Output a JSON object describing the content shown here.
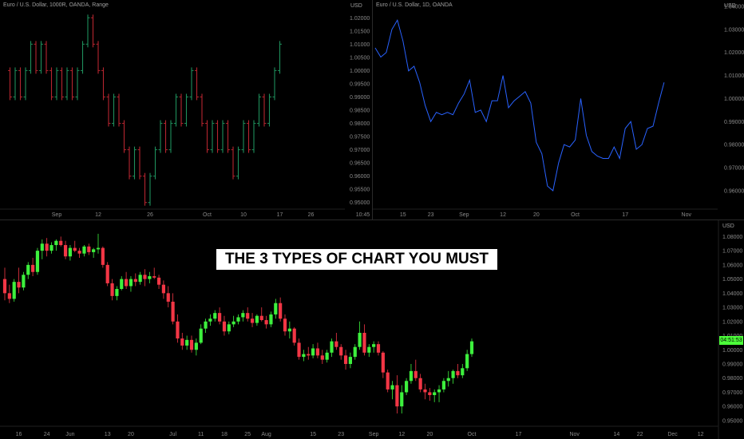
{
  "banner": "THE 3 TYPES OF CHART YOU MUST KNOW",
  "colors": {
    "up": "#3df03d",
    "down": "#f23645",
    "line": "#2962ff",
    "range_up": "#1e8f5c",
    "range_down": "#b5252f",
    "last_price": "#4cff3a"
  },
  "chart_data": [
    {
      "type": "range_bars",
      "legend": "Euro / U.S. Dollar, 1000R, OANDA, Range",
      "currency": "USD",
      "ylim": [
        0.9475,
        1.0225
      ],
      "y_ticks": [
        "1.02000",
        "1.01500",
        "1.01000",
        "1.00500",
        "1.00000",
        "0.99500",
        "0.99000",
        "0.98500",
        "0.98000",
        "0.97500",
        "0.97000",
        "0.96500",
        "0.96000",
        "0.95500",
        "0.95000"
      ],
      "x_ticks": [
        {
          "label": "Sep",
          "i": 10
        },
        {
          "label": "12",
          "i": 18
        },
        {
          "label": "26",
          "i": 28
        },
        {
          "label": "Oct",
          "i": 39
        },
        {
          "label": "10",
          "i": 46
        },
        {
          "label": "17",
          "i": 53
        },
        {
          "label": "26",
          "i": 59
        },
        {
          "label": "10:45",
          "i": 69
        }
      ],
      "values": [
        1.0,
        0.99,
        1.0,
        0.99,
        1.0,
        1.01,
        1.0,
        1.01,
        1.0,
        0.99,
        1.0,
        0.99,
        1.0,
        0.99,
        1.0,
        1.01,
        1.02,
        1.01,
        1.0,
        0.99,
        0.98,
        0.99,
        0.98,
        0.97,
        0.96,
        0.97,
        0.96,
        0.95,
        0.96,
        0.97,
        0.98,
        0.97,
        0.98,
        0.99,
        0.98,
        0.99,
        1.0,
        0.99,
        0.98,
        0.97,
        0.98,
        0.97,
        0.98,
        0.97,
        0.96,
        0.97,
        0.98,
        0.97,
        0.98,
        0.99,
        0.98,
        0.99,
        1.0,
        1.01
      ]
    },
    {
      "type": "line",
      "legend": "Euro / U.S. Dollar, 1D, OANDA",
      "currency": "USD",
      "ylim": [
        0.952,
        1.04
      ],
      "y_ticks": [
        "1.04000",
        "1.03000",
        "1.02000",
        "1.01000",
        "1.00000",
        "0.99000",
        "0.98000",
        "0.97000",
        "0.96000"
      ],
      "x_ticks": [
        {
          "label": "15",
          "i": 5
        },
        {
          "label": "23",
          "i": 10
        },
        {
          "label": "Sep",
          "i": 16
        },
        {
          "label": "12",
          "i": 23
        },
        {
          "label": "20",
          "i": 29
        },
        {
          "label": "Oct",
          "i": 36
        },
        {
          "label": "17",
          "i": 45
        },
        {
          "label": "Nov",
          "i": 56
        }
      ],
      "values": [
        1.022,
        1.018,
        1.02,
        1.03,
        1.034,
        1.025,
        1.012,
        1.014,
        1.007,
        0.997,
        0.99,
        0.994,
        0.993,
        0.994,
        0.993,
        0.998,
        1.002,
        1.008,
        0.994,
        0.995,
        0.99,
        0.999,
        0.999,
        1.01,
        0.996,
        0.999,
        1.001,
        1.003,
        0.998,
        0.981,
        0.976,
        0.962,
        0.96,
        0.972,
        0.98,
        0.979,
        0.982,
        1.0,
        0.984,
        0.977,
        0.975,
        0.974,
        0.974,
        0.979,
        0.974,
        0.987,
        0.99,
        0.978,
        0.98,
        0.987,
        0.988,
        0.998,
        1.007
      ]
    },
    {
      "type": "candlestick",
      "currency": "USD",
      "ylim": [
        0.946,
        1.087
      ],
      "y_ticks": [
        "1.08000",
        "1.07000",
        "1.06000",
        "1.05000",
        "1.04000",
        "1.03000",
        "1.02000",
        "1.01000",
        "1.00000",
        "0.99000",
        "0.98000",
        "0.97000",
        "0.96000",
        "0.95000"
      ],
      "last_price": "04:51:53",
      "x_ticks": [
        {
          "label": "16",
          "i": 3
        },
        {
          "label": "24",
          "i": 9
        },
        {
          "label": "Jun",
          "i": 14
        },
        {
          "label": "13",
          "i": 22
        },
        {
          "label": "20",
          "i": 27
        },
        {
          "label": "Jul",
          "i": 36
        },
        {
          "label": "11",
          "i": 42
        },
        {
          "label": "18",
          "i": 47
        },
        {
          "label": "25",
          "i": 52
        },
        {
          "label": "Aug",
          "i": 56
        },
        {
          "label": "15",
          "i": 66
        },
        {
          "label": "23",
          "i": 72
        },
        {
          "label": "Sep",
          "i": 79
        },
        {
          "label": "12",
          "i": 85
        },
        {
          "label": "20",
          "i": 91
        },
        {
          "label": "Oct",
          "i": 100
        },
        {
          "label": "17",
          "i": 110
        },
        {
          "label": "Nov",
          "i": 122
        },
        {
          "label": "14",
          "i": 131
        },
        {
          "label": "22",
          "i": 136
        },
        {
          "label": "Dec",
          "i": 143
        },
        {
          "label": "12",
          "i": 149
        }
      ],
      "ohlc": [
        [
          1.05,
          1.058,
          1.035,
          1.04
        ],
        [
          1.04,
          1.046,
          1.033,
          1.036
        ],
        [
          1.036,
          1.05,
          1.034,
          1.048
        ],
        [
          1.048,
          1.058,
          1.04,
          1.044
        ],
        [
          1.044,
          1.055,
          1.042,
          1.053
        ],
        [
          1.053,
          1.062,
          1.05,
          1.06
        ],
        [
          1.06,
          1.065,
          1.052,
          1.055
        ],
        [
          1.055,
          1.072,
          1.053,
          1.07
        ],
        [
          1.07,
          1.078,
          1.064,
          1.075
        ],
        [
          1.075,
          1.079,
          1.066,
          1.07
        ],
        [
          1.07,
          1.076,
          1.068,
          1.074
        ],
        [
          1.074,
          1.078,
          1.07,
          1.077
        ],
        [
          1.077,
          1.08,
          1.073,
          1.074
        ],
        [
          1.074,
          1.077,
          1.064,
          1.066
        ],
        [
          1.066,
          1.074,
          1.063,
          1.072
        ],
        [
          1.072,
          1.077,
          1.069,
          1.07
        ],
        [
          1.07,
          1.072,
          1.065,
          1.068
        ],
        [
          1.068,
          1.074,
          1.066,
          1.073
        ],
        [
          1.073,
          1.075,
          1.067,
          1.069
        ],
        [
          1.069,
          1.072,
          1.065,
          1.071
        ],
        [
          1.071,
          1.082,
          1.068,
          1.072
        ],
        [
          1.072,
          1.073,
          1.058,
          1.06
        ],
        [
          1.06,
          1.062,
          1.045,
          1.047
        ],
        [
          1.047,
          1.05,
          1.035,
          1.038
        ],
        [
          1.038,
          1.045,
          1.035,
          1.043
        ],
        [
          1.043,
          1.052,
          1.042,
          1.05
        ],
        [
          1.05,
          1.055,
          1.043,
          1.045
        ],
        [
          1.045,
          1.052,
          1.041,
          1.05
        ],
        [
          1.05,
          1.054,
          1.045,
          1.048
        ],
        [
          1.048,
          1.055,
          1.046,
          1.053
        ],
        [
          1.053,
          1.057,
          1.045,
          1.05
        ],
        [
          1.05,
          1.055,
          1.047,
          1.052
        ],
        [
          1.052,
          1.058,
          1.05,
          1.051
        ],
        [
          1.051,
          1.053,
          1.043,
          1.046
        ],
        [
          1.046,
          1.049,
          1.036,
          1.04
        ],
        [
          1.04,
          1.045,
          1.03,
          1.034
        ],
        [
          1.034,
          1.04,
          1.018,
          1.02
        ],
        [
          1.02,
          1.025,
          1.005,
          1.008
        ],
        [
          1.008,
          1.012,
          1.0,
          1.003
        ],
        [
          1.003,
          1.01,
          1.0,
          1.007
        ],
        [
          1.007,
          1.01,
          0.998,
          1.0
        ],
        [
          1.0,
          1.008,
          0.996,
          1.005
        ],
        [
          1.005,
          1.018,
          1.004,
          1.015
        ],
        [
          1.015,
          1.022,
          1.012,
          1.02
        ],
        [
          1.02,
          1.025,
          1.017,
          1.022
        ],
        [
          1.022,
          1.028,
          1.02,
          1.026
        ],
        [
          1.026,
          1.03,
          1.018,
          1.02
        ],
        [
          1.02,
          1.024,
          1.01,
          1.013
        ],
        [
          1.013,
          1.02,
          1.011,
          1.018
        ],
        [
          1.018,
          1.024,
          1.016,
          1.02
        ],
        [
          1.02,
          1.025,
          1.018,
          1.023
        ],
        [
          1.023,
          1.028,
          1.02,
          1.026
        ],
        [
          1.026,
          1.03,
          1.02,
          1.022
        ],
        [
          1.022,
          1.026,
          1.016,
          1.019
        ],
        [
          1.019,
          1.025,
          1.017,
          1.024
        ],
        [
          1.024,
          1.03,
          1.02,
          1.021
        ],
        [
          1.021,
          1.024,
          1.015,
          1.018
        ],
        [
          1.018,
          1.027,
          1.016,
          1.025
        ],
        [
          1.025,
          1.036,
          1.022,
          1.033
        ],
        [
          1.033,
          1.037,
          1.02,
          1.022
        ],
        [
          1.022,
          1.025,
          1.01,
          1.013
        ],
        [
          1.013,
          1.02,
          1.008,
          1.015
        ],
        [
          1.015,
          1.016,
          1.003,
          1.005
        ],
        [
          1.005,
          1.008,
          0.993,
          0.995
        ],
        [
          0.995,
          1.0,
          0.992,
          0.997
        ],
        [
          0.997,
          1.002,
          0.993,
          0.996
        ],
        [
          0.996,
          1.004,
          0.994,
          1.001
        ],
        [
          1.001,
          1.005,
          0.994,
          0.996
        ],
        [
          0.996,
          1.0,
          0.99,
          0.993
        ],
        [
          0.993,
          1.0,
          0.991,
          0.998
        ],
        [
          0.998,
          1.008,
          0.995,
          1.006
        ],
        [
          1.006,
          1.012,
          1.0,
          1.002
        ],
        [
          1.002,
          1.004,
          0.993,
          0.996
        ],
        [
          0.996,
          1.0,
          0.986,
          0.99
        ],
        [
          0.99,
          0.998,
          0.987,
          0.995
        ],
        [
          0.995,
          1.004,
          0.993,
          1.002
        ],
        [
          1.002,
          1.02,
          1.0,
          1.012
        ],
        [
          1.012,
          1.018,
          0.996,
          0.998
        ],
        [
          0.998,
          1.004,
          0.995,
          1.002
        ],
        [
          1.002,
          1.006,
          0.998,
          1.004
        ],
        [
          1.004,
          1.006,
          0.996,
          0.998
        ],
        [
          0.998,
          0.999,
          0.98,
          0.984
        ],
        [
          0.984,
          0.986,
          0.97,
          0.972
        ],
        [
          0.972,
          0.978,
          0.965,
          0.975
        ],
        [
          0.975,
          0.982,
          0.955,
          0.96
        ],
        [
          0.96,
          0.975,
          0.955,
          0.97
        ],
        [
          0.97,
          0.98,
          0.968,
          0.978
        ],
        [
          0.978,
          0.99,
          0.976,
          0.985
        ],
        [
          0.985,
          0.993,
          0.978,
          0.98
        ],
        [
          0.98,
          0.983,
          0.97,
          0.972
        ],
        [
          0.972,
          0.976,
          0.965,
          0.97
        ],
        [
          0.97,
          0.973,
          0.964,
          0.968
        ],
        [
          0.968,
          0.972,
          0.963,
          0.97
        ],
        [
          0.97,
          0.975,
          0.963,
          0.972
        ],
        [
          0.972,
          0.98,
          0.97,
          0.978
        ],
        [
          0.978,
          0.985,
          0.974,
          0.98
        ],
        [
          0.98,
          0.986,
          0.976,
          0.985
        ],
        [
          0.985,
          0.99,
          0.98,
          0.982
        ],
        [
          0.982,
          0.99,
          0.98,
          0.987
        ],
        [
          0.987,
          1.0,
          0.985,
          0.997
        ],
        [
          0.997,
          1.008,
          0.995,
          1.006
        ]
      ]
    }
  ]
}
